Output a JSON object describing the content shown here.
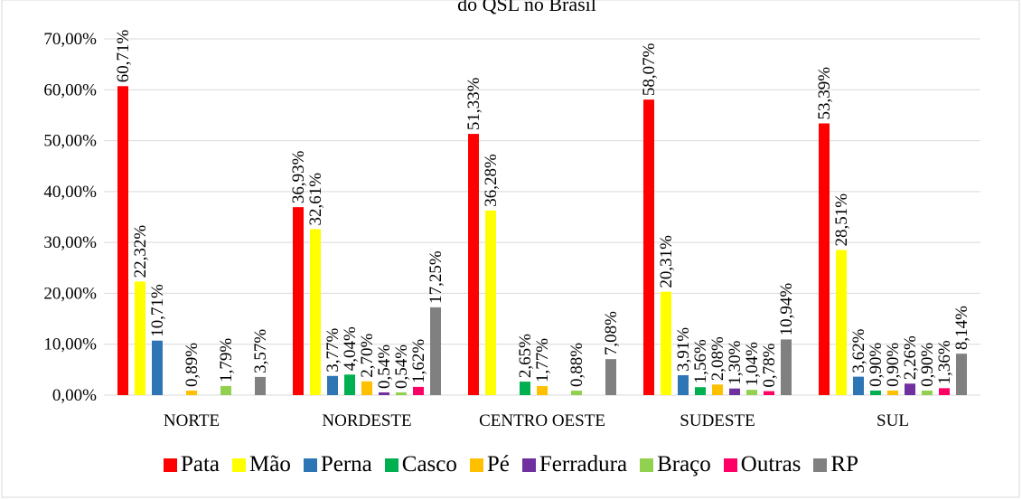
{
  "chart_data": {
    "type": "bar",
    "title": "do QSL no Brasil",
    "categories": [
      "NORTE",
      "NORDESTE",
      "CENTRO OESTE",
      "SUDESTE",
      "SUL"
    ],
    "series": [
      {
        "name": "Pata",
        "color": "#ff0000",
        "values": [
          60.71,
          36.93,
          51.33,
          58.07,
          53.39
        ],
        "value_labels": [
          "60,71%",
          "36,93%",
          "51,33%",
          "58,07%",
          "53,39%"
        ]
      },
      {
        "name": "Mão",
        "color": "#ffff00",
        "values": [
          22.32,
          32.61,
          36.28,
          20.31,
          28.51
        ],
        "value_labels": [
          "22,32%",
          "32,61%",
          "36,28%",
          "20,31%",
          "28,51%"
        ]
      },
      {
        "name": "Perna",
        "color": "#2e75b6",
        "values": [
          10.71,
          3.77,
          null,
          3.91,
          3.62
        ],
        "value_labels": [
          "10,71%",
          "3,77%",
          null,
          "3,91%",
          "3,62%"
        ]
      },
      {
        "name": "Casco",
        "color": "#00b050",
        "values": [
          null,
          4.04,
          2.65,
          1.56,
          0.9
        ],
        "value_labels": [
          null,
          "4,04%",
          "2,65%",
          "1,56%",
          "0,90%"
        ]
      },
      {
        "name": "Pé",
        "color": "#ffc000",
        "values": [
          0.89,
          2.7,
          1.77,
          2.08,
          0.9
        ],
        "value_labels": [
          "0,89%",
          "2,70%",
          "1,77%",
          "2,08%",
          "0,90%"
        ]
      },
      {
        "name": "Ferradura",
        "color": "#7030a0",
        "values": [
          null,
          0.54,
          null,
          1.3,
          2.26
        ],
        "value_labels": [
          null,
          "0,54%",
          null,
          "1,30%",
          "2,26%"
        ]
      },
      {
        "name": "Braço",
        "color": "#92d050",
        "values": [
          1.79,
          0.54,
          0.88,
          1.04,
          0.9
        ],
        "value_labels": [
          "1,79%",
          "0,54%",
          "0,88%",
          "1,04%",
          "0,90%"
        ]
      },
      {
        "name": "Outras",
        "color": "#ff0066",
        "values": [
          null,
          1.62,
          null,
          0.78,
          1.36
        ],
        "value_labels": [
          null,
          "1,62%",
          null,
          "0,78%",
          "1,36%"
        ]
      },
      {
        "name": "RP",
        "color": "#808080",
        "values": [
          3.57,
          17.25,
          7.08,
          10.94,
          8.14
        ],
        "value_labels": [
          "3,57%",
          "17,25%",
          "7,08%",
          "10,94%",
          "8,14%"
        ]
      }
    ],
    "ylim": [
      0,
      70
    ],
    "yticks": [
      {
        "value": 0,
        "label": "0,00%"
      },
      {
        "value": 10,
        "label": "10,00%"
      },
      {
        "value": 20,
        "label": "20,00%"
      },
      {
        "value": 30,
        "label": "30,00%"
      },
      {
        "value": 40,
        "label": "40,00%"
      },
      {
        "value": 50,
        "label": "50,00%"
      },
      {
        "value": 60,
        "label": "60,00%"
      },
      {
        "value": 70,
        "label": "70,00%"
      }
    ],
    "grid": true,
    "legend": "bottom"
  }
}
